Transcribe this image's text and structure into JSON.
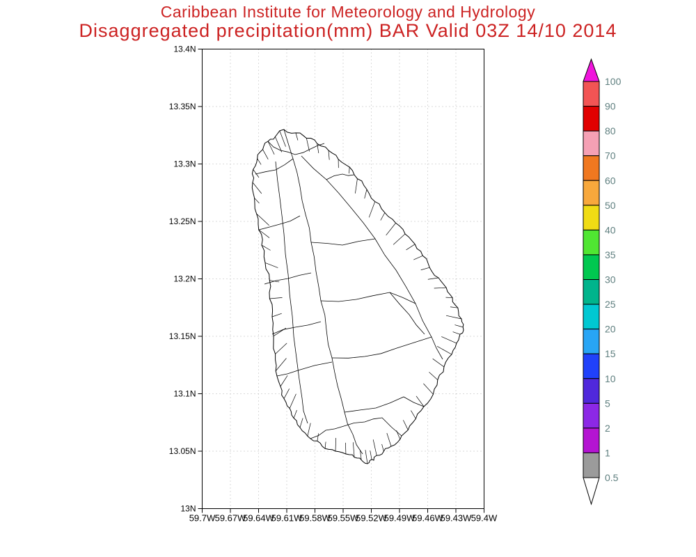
{
  "titles": {
    "line1": "Caribbean Institute for Meteorology and Hydrology",
    "line2": "Disaggregated precipitation(mm) BAR Valid 03Z 14/10 2014",
    "color": "#cc2222"
  },
  "axes": {
    "lat_labels": [
      "13.4N",
      "13.35N",
      "13.3N",
      "13.25N",
      "13.2N",
      "13.15N",
      "13.1N",
      "13.05N",
      "13N"
    ],
    "lon_labels": [
      "59.7W",
      "59.67W",
      "59.64W",
      "59.61W",
      "59.58W",
      "59.55W",
      "59.52W",
      "59.49W",
      "59.46W",
      "59.43W",
      "59.4W"
    ],
    "label_color": "#000000",
    "grid_color": "#b4b4b4"
  },
  "map": {
    "outline_color": "#000000",
    "fill_color": "#ffffff"
  },
  "colorbar": {
    "labels": [
      "100",
      "90",
      "80",
      "70",
      "60",
      "50",
      "40",
      "35",
      "30",
      "25",
      "20",
      "15",
      "10",
      "5",
      "2",
      "1",
      "0.5"
    ],
    "segment_colors_top_to_bottom": [
      "#f25454",
      "#e10000",
      "#f5a0b4",
      "#f07820",
      "#f8a83c",
      "#f0dc14",
      "#50e632",
      "#00c850",
      "#00b48c",
      "#00c8d2",
      "#28a5f5",
      "#2041fa",
      "#5028dc",
      "#8c28e6",
      "#b414d2",
      "#9b9b9b"
    ],
    "arrow_up_color": "#f014dc",
    "arrow_down_color": "#ffffff",
    "outline_color": "#000000",
    "label_color": "#5f7f7f"
  }
}
